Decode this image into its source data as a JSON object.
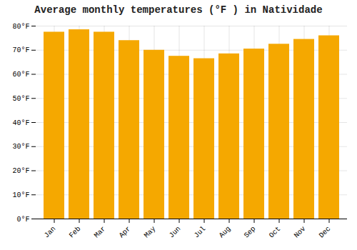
{
  "chart_data": {
    "type": "bar",
    "title": "Average monthly temperatures (°F ) in Natividade",
    "categories": [
      "Jan",
      "Feb",
      "Mar",
      "Apr",
      "May",
      "Jun",
      "Jul",
      "Aug",
      "Sep",
      "Oct",
      "Nov",
      "Dec"
    ],
    "values": [
      77.5,
      78.5,
      77.5,
      74.0,
      70.0,
      67.5,
      66.5,
      68.5,
      70.5,
      72.5,
      74.5,
      76.0
    ],
    "color": "#F5A800",
    "ylim": [
      0,
      80
    ],
    "yticks": [
      {
        "value": 0,
        "label": "0°F"
      },
      {
        "value": 10,
        "label": "10°F"
      },
      {
        "value": 20,
        "label": "20°F"
      },
      {
        "value": 30,
        "label": "30°F"
      },
      {
        "value": 40,
        "label": "40°F"
      },
      {
        "value": 50,
        "label": "50°F"
      },
      {
        "value": 60,
        "label": "60°F"
      },
      {
        "value": 70,
        "label": "70°F"
      },
      {
        "value": 80,
        "label": "80°F"
      }
    ],
    "grid": true
  }
}
